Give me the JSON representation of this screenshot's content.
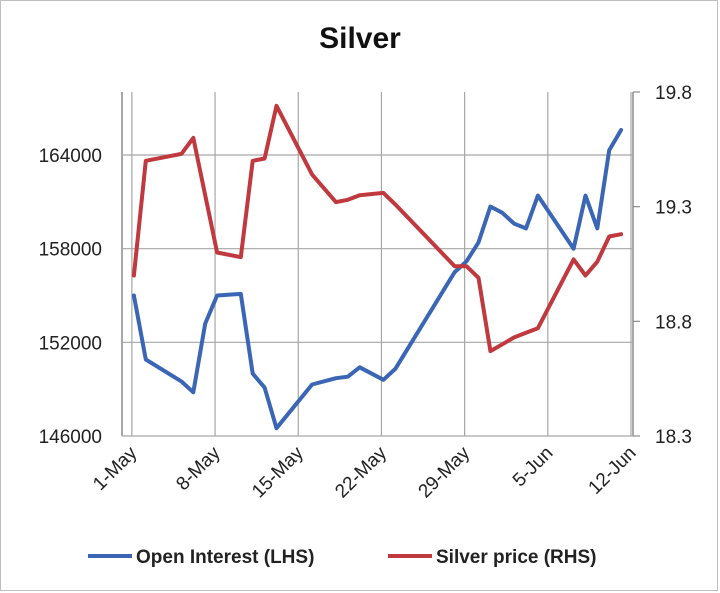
{
  "chart_data": {
    "type": "line",
    "title": "Silver",
    "x_tick_labels": [
      "1-May",
      "8-May",
      "15-May",
      "22-May",
      "29-May",
      "5-Jun",
      "12-Jun"
    ],
    "y_left": {
      "ticks": [
        "146000",
        "152000",
        "158000",
        "164000"
      ],
      "ylim": [
        146000,
        164000
      ]
    },
    "y_right": {
      "ticks": [
        "18.3",
        "18.8",
        "19.3",
        "19.8"
      ],
      "ylim": [
        18.3,
        19.8
      ]
    },
    "grid": true,
    "legend_position": "bottom",
    "series": [
      {
        "name": "Open Interest (LHS)",
        "axis": "left",
        "color": "#3a66b5",
        "x": [
          1,
          2,
          5,
          6,
          7,
          8,
          10,
          11,
          12,
          13,
          16,
          18,
          19,
          20,
          22,
          23,
          28,
          29,
          30,
          31,
          32,
          33,
          34,
          35,
          38,
          39,
          40,
          41,
          42
        ],
        "values": [
          155000,
          150900,
          149500,
          148800,
          153200,
          155000,
          155100,
          150000,
          149100,
          146500,
          149300,
          149700,
          149800,
          150400,
          149600,
          150300,
          156500,
          157200,
          158400,
          160700,
          160300,
          159600,
          159300,
          161400,
          158000,
          161400,
          159300,
          164300,
          165600
        ]
      },
      {
        "name": "Silver price (RHS)",
        "axis": "right",
        "color": "#c0393f",
        "x": [
          1,
          2,
          5,
          6,
          7,
          8,
          10,
          11,
          12,
          13,
          16,
          18,
          19,
          20,
          22,
          23,
          28,
          29,
          30,
          31,
          32,
          33,
          34,
          35,
          38,
          39,
          40,
          41,
          42
        ],
        "values": [
          19.0,
          19.5,
          19.53,
          19.6,
          19.35,
          19.1,
          19.08,
          19.5,
          19.51,
          19.74,
          19.44,
          19.32,
          19.33,
          19.35,
          19.36,
          19.31,
          19.04,
          19.04,
          18.99,
          18.67,
          18.7,
          18.73,
          18.75,
          18.77,
          19.07,
          19.0,
          19.06,
          19.17,
          19.18
        ]
      }
    ]
  }
}
